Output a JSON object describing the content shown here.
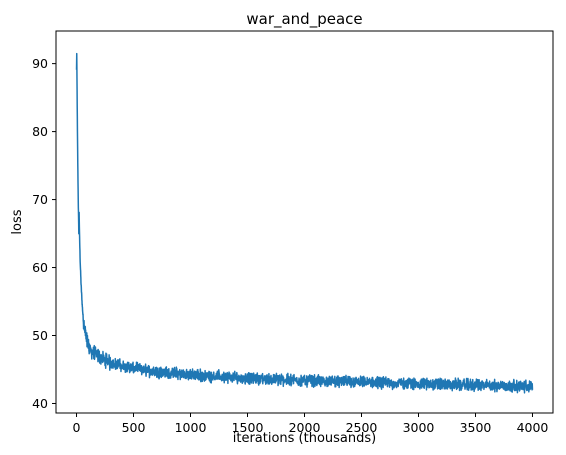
{
  "chart_data": {
    "type": "line",
    "title": "war_and_peace",
    "xlabel": "iterations (thousands)",
    "ylabel": "loss",
    "xlim": [
      -180,
      4180
    ],
    "ylim": [
      38.6,
      94.8
    ],
    "x_ticks": [
      0,
      500,
      1000,
      1500,
      2000,
      2500,
      3000,
      3500,
      4000
    ],
    "y_ticks": [
      40,
      50,
      60,
      70,
      80,
      90
    ],
    "grid": false,
    "series_color": "#1f77b4",
    "series": [
      {
        "values": [
          {
            "x": 0,
            "y": 89.0
          },
          {
            "x": 2,
            "y": 91.4
          },
          {
            "x": 5,
            "y": 86.0
          },
          {
            "x": 8,
            "y": 80.0
          },
          {
            "x": 12,
            "y": 74.0
          },
          {
            "x": 16,
            "y": 69.0
          },
          {
            "x": 20,
            "y": 65.2
          },
          {
            "x": 23,
            "y": 68.2
          },
          {
            "x": 26,
            "y": 65.0
          },
          {
            "x": 32,
            "y": 61.0
          },
          {
            "x": 40,
            "y": 57.5
          },
          {
            "x": 50,
            "y": 54.5
          },
          {
            "x": 60,
            "y": 52.2
          },
          {
            "x": 75,
            "y": 50.5
          },
          {
            "x": 90,
            "y": 49.5
          },
          {
            "x": 110,
            "y": 48.3
          },
          {
            "x": 130,
            "y": 47.7
          },
          {
            "x": 160,
            "y": 47.3
          },
          {
            "x": 200,
            "y": 46.9
          },
          {
            "x": 250,
            "y": 46.4
          },
          {
            "x": 300,
            "y": 46.0
          },
          {
            "x": 400,
            "y": 45.5
          },
          {
            "x": 500,
            "y": 45.2
          },
          {
            "x": 600,
            "y": 44.9
          },
          {
            "x": 700,
            "y": 44.7
          },
          {
            "x": 800,
            "y": 44.5
          },
          {
            "x": 1000,
            "y": 44.2
          },
          {
            "x": 1200,
            "y": 44.0
          },
          {
            "x": 1500,
            "y": 43.7
          },
          {
            "x": 1800,
            "y": 43.5
          },
          {
            "x": 2000,
            "y": 43.4
          },
          {
            "x": 2500,
            "y": 43.1
          },
          {
            "x": 3000,
            "y": 42.9
          },
          {
            "x": 3500,
            "y": 42.7
          },
          {
            "x": 4000,
            "y": 42.5
          }
        ]
      }
    ]
  }
}
